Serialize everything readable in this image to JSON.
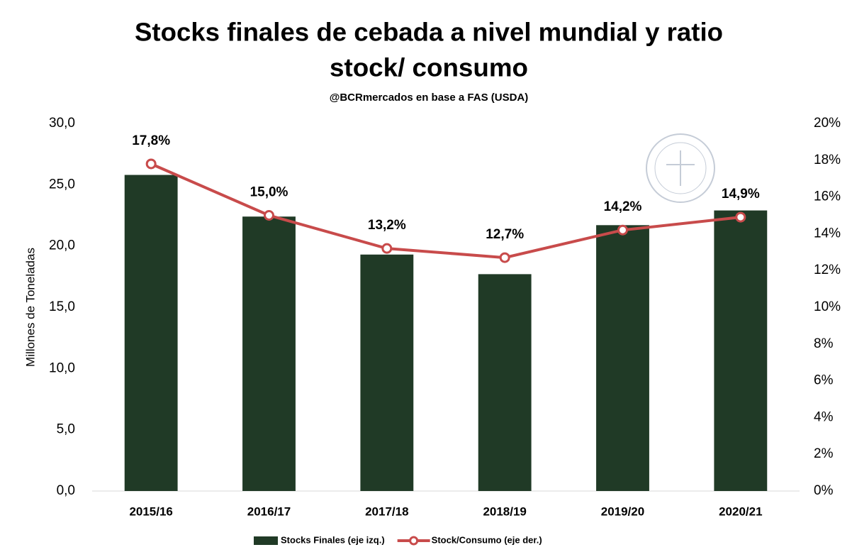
{
  "chart_data": {
    "type": "bar_line",
    "title": [
      "Stocks finales de cebada a nivel mundial y ratio",
      "stock/ consumo"
    ],
    "subtitle": "@BCRmercados en base a FAS (USDA)",
    "y_label": "Millones de Toneladas",
    "categories": [
      "2015/16",
      "2016/17",
      "2017/18",
      "2018/19",
      "2019/20",
      "2020/21"
    ],
    "series": [
      {
        "name": "Stocks Finales (eje izq.)",
        "color": "#203a26",
        "type": "bar",
        "axis": "y",
        "values": [
          25.8,
          22.4,
          19.3,
          17.7,
          21.7,
          22.9
        ]
      },
      {
        "name": "Stock/Consumo (eje der.)",
        "color": "#c84b4b",
        "type": "line",
        "axis": "y2",
        "values": [
          17.8,
          15.0,
          13.2,
          12.7,
          14.2,
          14.9
        ],
        "value_labels": [
          "17,8%",
          "15,0%",
          "13,2%",
          "12,7%",
          "14,2%",
          "14,9%"
        ]
      }
    ],
    "ylim": [
      0,
      30
    ],
    "yticks": [
      {
        "value": 0,
        "label": "0,0"
      },
      {
        "value": 5,
        "label": "5,0"
      },
      {
        "value": 10,
        "label": "10,0"
      },
      {
        "value": 15,
        "label": "15,0"
      },
      {
        "value": 20,
        "label": "20,0"
      },
      {
        "value": 25,
        "label": "25,0"
      },
      {
        "value": 30,
        "label": "30,0"
      }
    ],
    "y2lim": [
      0,
      20
    ],
    "y2ticks": [
      {
        "value": 0,
        "label": "0%"
      },
      {
        "value": 2,
        "label": "2%"
      },
      {
        "value": 4,
        "label": "4%"
      },
      {
        "value": 6,
        "label": "6%"
      },
      {
        "value": 8,
        "label": "8%"
      },
      {
        "value": 10,
        "label": "10%"
      },
      {
        "value": 12,
        "label": "12%"
      },
      {
        "value": 14,
        "label": "14%"
      },
      {
        "value": 16,
        "label": "16%"
      },
      {
        "value": 18,
        "label": "18%"
      },
      {
        "value": 20,
        "label": "20%"
      }
    ],
    "legend": "bottom"
  }
}
